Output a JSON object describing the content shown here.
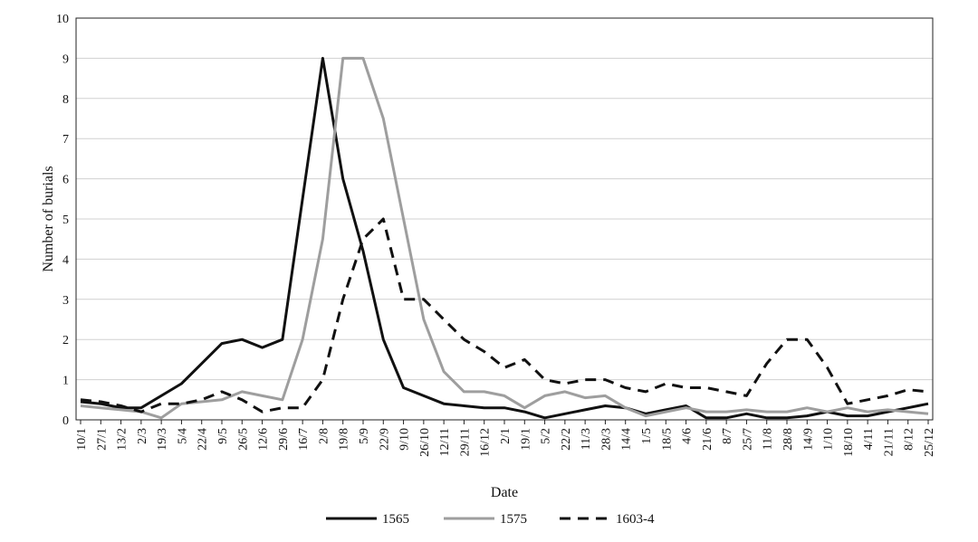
{
  "chart_data": {
    "type": "line",
    "title": "",
    "xlabel": "Date",
    "ylabel": "Number of burials",
    "ylim": [
      0,
      10
    ],
    "yticks": [
      0,
      1,
      2,
      3,
      4,
      5,
      6,
      7,
      8,
      9,
      10
    ],
    "grid": "horizontal",
    "legend": "bottom",
    "x_ticks": [
      "10/1",
      "27/1",
      "13/2",
      "2/3",
      "19/3",
      "5/4",
      "22/4",
      "9/5",
      "26/5",
      "12/6",
      "29/6",
      "16/7",
      "2/8",
      "19/8",
      "5/9",
      "22/9",
      "9/10",
      "26/10",
      "12/11",
      "29/11",
      "16/12",
      "2/1",
      "19/1",
      "5/2",
      "22/2",
      "11/3",
      "28/3",
      "14/4",
      "1/5",
      "18/5",
      "4/6",
      "21/6",
      "8/7",
      "25/7",
      "11/8",
      "28/8",
      "14/9",
      "1/10",
      "18/10",
      "4/11",
      "21/11",
      "8/12",
      "25/12"
    ],
    "series": [
      {
        "name": "1565",
        "color": "#111111",
        "style": "solid",
        "values": [
          0.45,
          0.4,
          0.3,
          0.3,
          0.6,
          0.9,
          1.4,
          1.9,
          2.0,
          1.8,
          2.0,
          5.5,
          9.0,
          6.0,
          4.2,
          2.0,
          0.8,
          0.6,
          0.4,
          0.35,
          0.3,
          0.3,
          0.2,
          0.05,
          0.15,
          0.25,
          0.35,
          0.3,
          0.15,
          0.25,
          0.35,
          0.05,
          0.05,
          0.15,
          0.05,
          0.05,
          0.1,
          0.2,
          0.1,
          0.1,
          0.2,
          0.3,
          0.4
        ]
      },
      {
        "name": "1575",
        "color": "#9e9e9e",
        "style": "solid",
        "values": [
          0.35,
          0.3,
          0.25,
          0.2,
          0.05,
          0.4,
          0.45,
          0.5,
          0.7,
          0.6,
          0.5,
          2.0,
          4.5,
          9.0,
          9.0,
          7.5,
          5.0,
          2.5,
          1.2,
          0.7,
          0.7,
          0.6,
          0.3,
          0.6,
          0.7,
          0.55,
          0.6,
          0.3,
          0.1,
          0.2,
          0.3,
          0.2,
          0.2,
          0.25,
          0.2,
          0.2,
          0.3,
          0.2,
          0.3,
          0.2,
          0.25,
          0.2,
          0.15
        ]
      },
      {
        "name": "1603-4",
        "color": "#111111",
        "style": "dashed",
        "values": [
          0.5,
          0.45,
          0.35,
          0.2,
          0.4,
          0.4,
          0.5,
          0.7,
          0.5,
          0.2,
          0.3,
          0.3,
          1.0,
          3.0,
          4.5,
          5.0,
          3.0,
          3.0,
          2.5,
          2.0,
          1.7,
          1.3,
          1.5,
          1.0,
          0.9,
          1.0,
          1.0,
          0.8,
          0.7,
          0.9,
          0.8,
          0.8,
          0.7,
          0.6,
          1.4,
          2.0,
          2.0,
          1.3,
          0.4,
          0.5,
          0.6,
          0.75,
          0.7
        ]
      }
    ]
  }
}
